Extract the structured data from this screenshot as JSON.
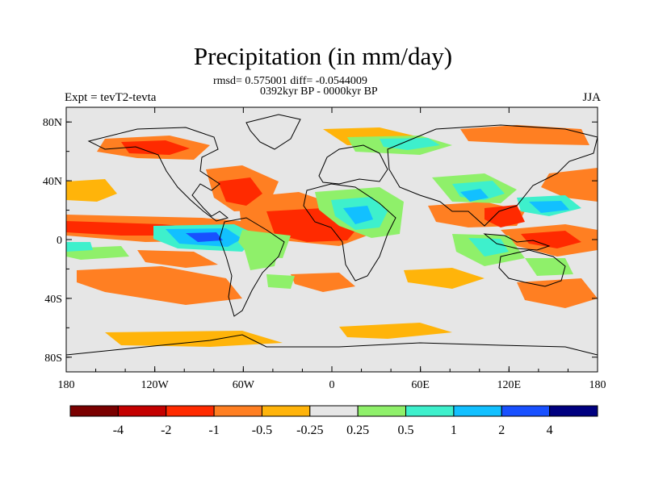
{
  "title": "Precipitation (in mm/day)",
  "stats_line": "rmsd= 0.575001 diff= -0.0544009",
  "period_line": "0392kyr BP - 0000kyr BP",
  "experiment_label": "Expt = tevT2-tevta",
  "season_label": "JJA",
  "map": {
    "lon_range": [
      -180,
      180
    ],
    "lat_range": [
      -90,
      90
    ],
    "x_ticks": [
      {
        "lon": -180,
        "label": "180"
      },
      {
        "lon": -120,
        "label": "120W"
      },
      {
        "lon": -60,
        "label": "60W"
      },
      {
        "lon": 0,
        "label": "0"
      },
      {
        "lon": 60,
        "label": "60E"
      },
      {
        "lon": 120,
        "label": "120E"
      },
      {
        "lon": 180,
        "label": "180"
      }
    ],
    "y_ticks": [
      {
        "lat": 80,
        "label": "80N"
      },
      {
        "lat": 40,
        "label": "40N"
      },
      {
        "lat": 0,
        "label": "0"
      },
      {
        "lat": -40,
        "label": "40S"
      },
      {
        "lat": -80,
        "label": "80S"
      }
    ],
    "background_color": "#e6e6e6"
  },
  "colorbar": {
    "colors": [
      "#7a0000",
      "#c40000",
      "#ff2a00",
      "#ff7f22",
      "#ffb40a",
      "#e6e6e6",
      "#8ff06a",
      "#3ef0cc",
      "#12c0ff",
      "#1850ff",
      "#000080"
    ],
    "labels": [
      "-4",
      "-2",
      "-1",
      "-0.5",
      "-0.25",
      "0.25",
      "0.5",
      "1",
      "2",
      "4"
    ]
  }
}
